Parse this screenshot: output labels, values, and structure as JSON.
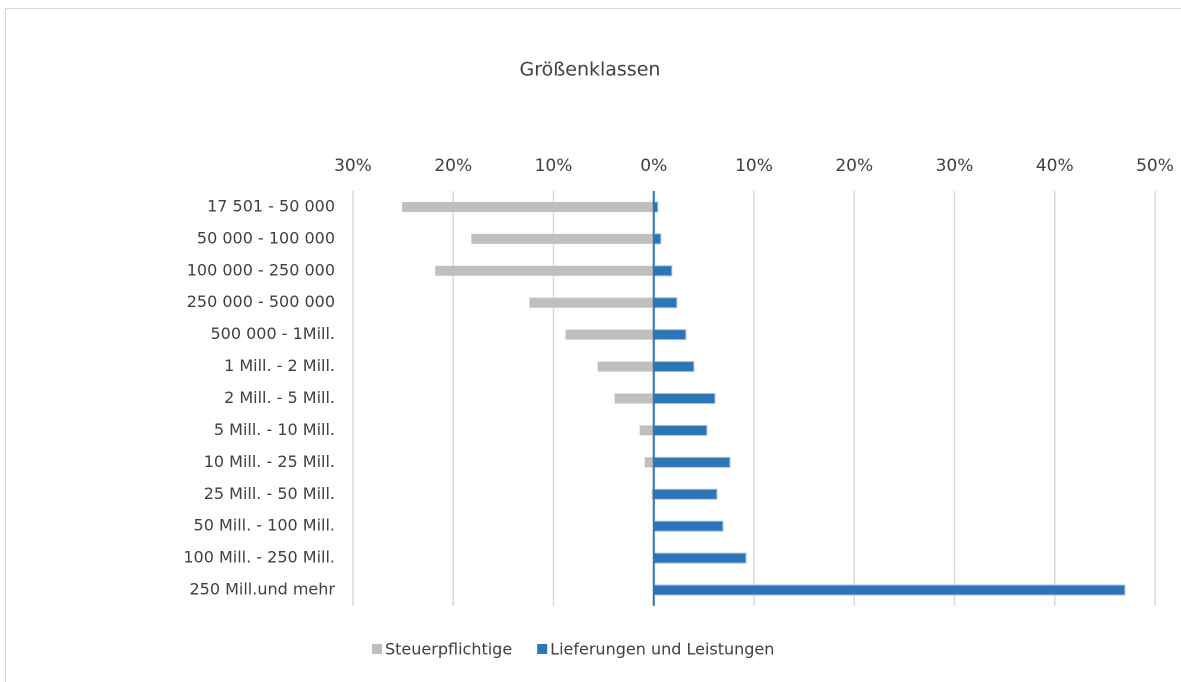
{
  "chart_data": {
    "type": "bar",
    "orientation": "horizontal",
    "title": "Größenklassen",
    "categories": [
      "17 501 - 50 000",
      "50 000 - 100 000",
      "100 000 - 250 000",
      "250 000 - 500 000",
      "500 000 - 1Mill.",
      "1 Mill. - 2 Mill.",
      "2 Mill. - 5 Mill.",
      "5 Mill. - 10 Mill.",
      "10 Mill. - 25 Mill.",
      "25 Mill. - 50 Mill.",
      "50 Mill. - 100 Mill.",
      "100 Mill. - 250 Mill.",
      "250 Mill.und mehr"
    ],
    "series": [
      {
        "name": "Steuerpflichtige",
        "color": "#bfbfbf",
        "values": [
          -25.1,
          -18.2,
          -21.8,
          -12.4,
          -8.8,
          -5.6,
          -3.9,
          -1.4,
          -0.9,
          -0.2,
          0,
          0,
          0
        ]
      },
      {
        "name": "Lieferungen und Leistungen",
        "color": "#2e75b6",
        "values": [
          0.4,
          0.7,
          1.8,
          2.3,
          3.2,
          4.0,
          6.1,
          5.3,
          7.6,
          6.3,
          6.9,
          9.2,
          47.0
        ]
      }
    ],
    "xlim": [
      -30,
      50
    ],
    "xticks": [
      {
        "value": -30,
        "label": "30%"
      },
      {
        "value": -20,
        "label": "20%"
      },
      {
        "value": -10,
        "label": "10%"
      },
      {
        "value": 0,
        "label": "0%"
      },
      {
        "value": 10,
        "label": "10%"
      },
      {
        "value": 20,
        "label": "20%"
      },
      {
        "value": 30,
        "label": "30%"
      },
      {
        "value": 40,
        "label": "40%"
      },
      {
        "value": 50,
        "label": "50%"
      }
    ],
    "grid": true,
    "legend": "bottom"
  }
}
